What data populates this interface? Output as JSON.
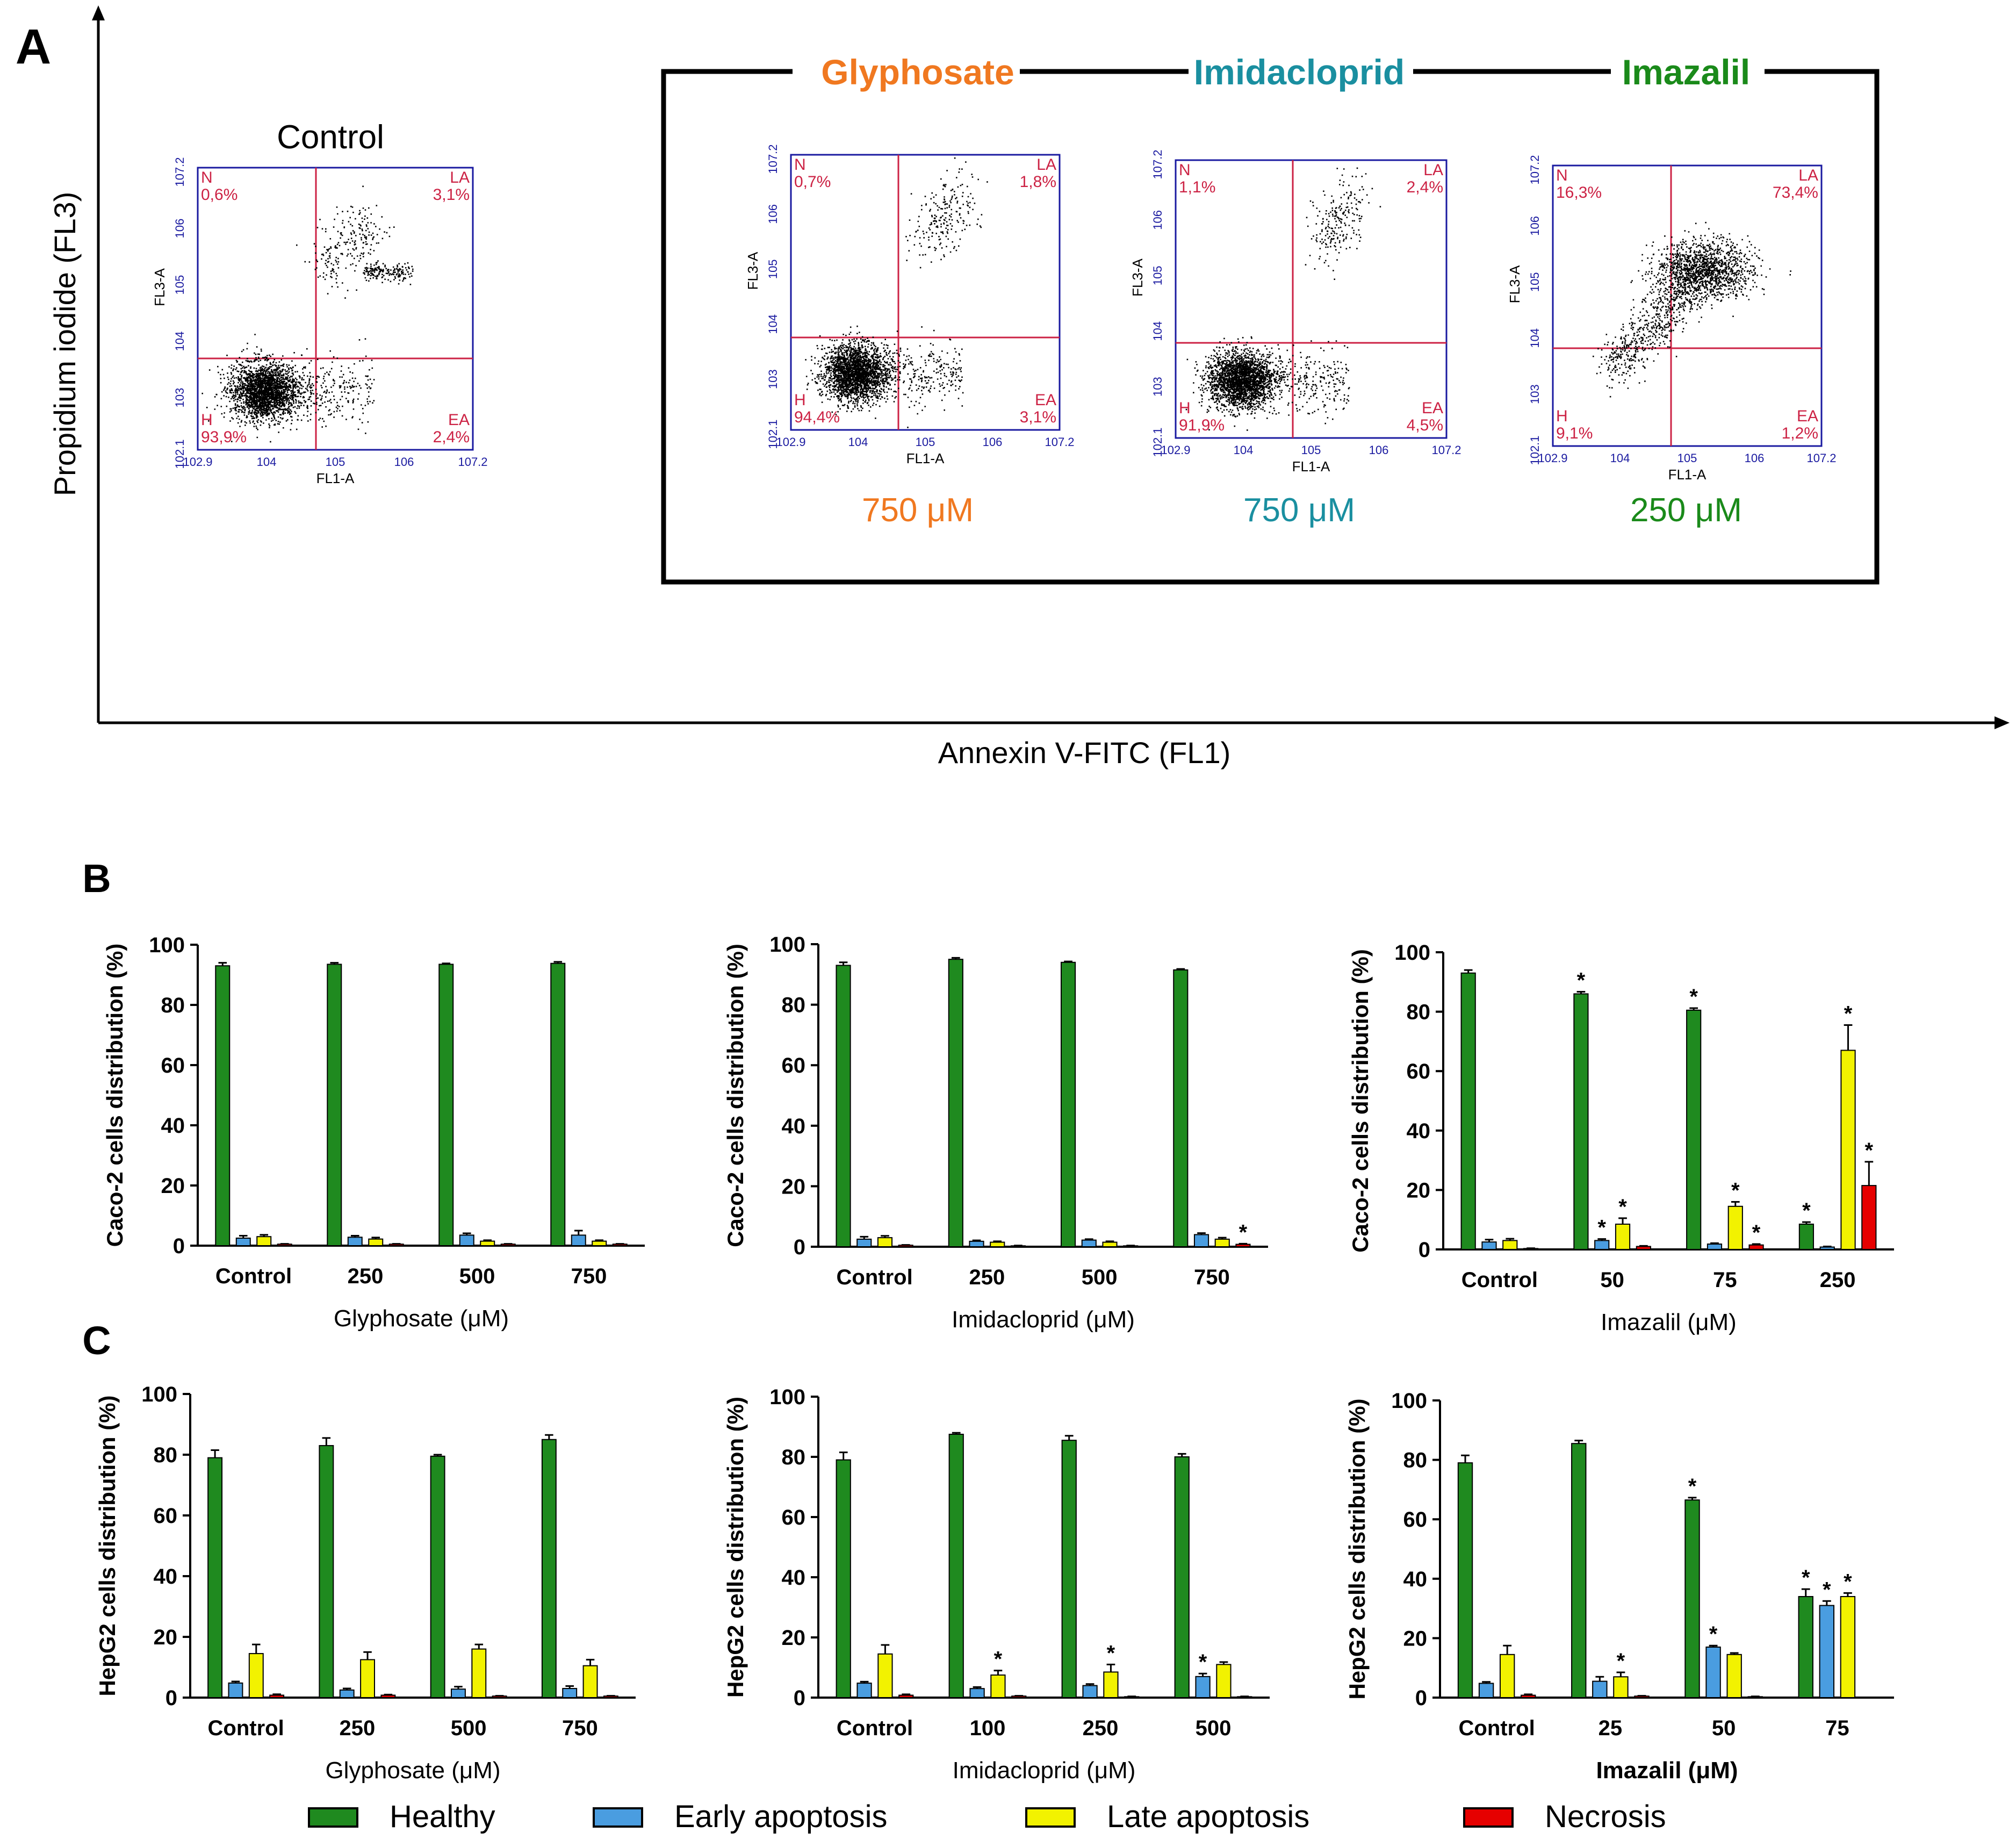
{
  "colors": {
    "healthy": "#1f8a1f",
    "early": "#4a9de0",
    "late": "#f2f200",
    "necrosis": "#e60000",
    "glyphosate": "#f07820",
    "imidacloprid": "#1a8fa0",
    "imazalil": "#1a8a1a",
    "quadrant": "#cc2244",
    "flowAxis": "#1a1aa0"
  },
  "panel_a": {
    "label": "A",
    "y_axis_label": "Propidium iodide (FL3)",
    "x_axis_label": "Annexin V-FITC (FL1)",
    "plots": [
      {
        "title": "Control",
        "conc": "",
        "key": "control",
        "quad": {
          "N": "0,6%",
          "LA": "3,1%",
          "H": "93,9%",
          "EA": "2,4%"
        }
      },
      {
        "title": "Glyphosate",
        "conc": "750 μM",
        "key": "glyphosate",
        "quad": {
          "N": "0,7%",
          "LA": "1,8%",
          "H": "94,4%",
          "EA": "3,1%"
        }
      },
      {
        "title": "Imidacloprid",
        "conc": "750 μM",
        "key": "imidacloprid",
        "quad": {
          "N": "1,1%",
          "LA": "2,4%",
          "H": "91,9%",
          "EA": "4,5%"
        }
      },
      {
        "title": "Imazalil",
        "conc": "250 μM",
        "key": "imazalil",
        "quad": {
          "N": "16,3%",
          "LA": "73,4%",
          "H": "9,1%",
          "EA": "1,2%"
        }
      }
    ],
    "quadrant_names": {
      "N": "N",
      "LA": "LA",
      "H": "H",
      "EA": "EA"
    },
    "flow_axis": {
      "x_label": "FL1-A",
      "y_label": "FL3-A",
      "x_ticks": [
        "10^2.9",
        "10^4",
        "10^5",
        "10^6",
        "10^7.2"
      ],
      "y_ticks": [
        "10^2.1",
        "10^3",
        "10^4",
        "10^5",
        "10^6",
        "10^7.2"
      ]
    }
  },
  "panel_labels": {
    "b": "B",
    "c": "C"
  },
  "legend": [
    "Healthy",
    "Early apoptosis",
    "Late apoptosis",
    "Necrosis"
  ],
  "chart_data": [
    {
      "type": "bar",
      "panel": "B",
      "xlabel": "Glyphosate (μM)",
      "ylabel": "Caco-2 cells distribution (%)",
      "ylim": [
        0,
        100
      ],
      "yticks": [
        0,
        20,
        40,
        60,
        80,
        100
      ],
      "categories": [
        "Control",
        "250",
        "500",
        "750"
      ],
      "series": [
        {
          "name": "Healthy",
          "values": [
            93,
            93.5,
            93.5,
            93.8
          ],
          "err": [
            1,
            0.5,
            0.3,
            0.5
          ]
        },
        {
          "name": "Early apoptosis",
          "values": [
            2.5,
            2.8,
            3.5,
            3.5
          ],
          "err": [
            0.8,
            0.5,
            0.6,
            1.5
          ]
        },
        {
          "name": "Late apoptosis",
          "values": [
            3,
            2.2,
            1.5,
            1.5
          ],
          "err": [
            0.6,
            0.5,
            0.3,
            0.3
          ]
        },
        {
          "name": "Necrosis",
          "values": [
            0.5,
            0.5,
            0.5,
            0.5
          ],
          "err": [
            0.1,
            0.1,
            0.1,
            0.1
          ]
        }
      ],
      "stars": []
    },
    {
      "type": "bar",
      "panel": "B",
      "xlabel": "Imidacloprid (μM)",
      "ylabel": "Caco-2 cells distribution (%)",
      "ylim": [
        0,
        100
      ],
      "yticks": [
        0,
        20,
        40,
        60,
        80,
        100
      ],
      "categories": [
        "Control",
        "250",
        "500",
        "750"
      ],
      "series": [
        {
          "name": "Healthy",
          "values": [
            93,
            95,
            94,
            91.5
          ],
          "err": [
            1,
            0.5,
            0.3,
            0.3
          ]
        },
        {
          "name": "Early apoptosis",
          "values": [
            2.5,
            1.8,
            2.2,
            4
          ],
          "err": [
            0.8,
            0.3,
            0.3,
            0.5
          ]
        },
        {
          "name": "Late apoptosis",
          "values": [
            3,
            1.5,
            1.5,
            2.5
          ],
          "err": [
            0.6,
            0.3,
            0.3,
            0.5
          ]
        },
        {
          "name": "Necrosis",
          "values": [
            0.5,
            0.3,
            0.3,
            0.8
          ],
          "err": [
            0.1,
            0.1,
            0.1,
            0.2
          ]
        }
      ],
      "stars": [
        [
          3,
          3
        ]
      ]
    },
    {
      "type": "bar",
      "panel": "B",
      "xlabel": "Imazalil (μM)",
      "ylabel": "Caco-2 cells distribution (%)",
      "ylim": [
        0,
        100
      ],
      "yticks": [
        0,
        20,
        40,
        60,
        80,
        100
      ],
      "categories": [
        "Control",
        "50",
        "75",
        "250"
      ],
      "series": [
        {
          "name": "Healthy",
          "values": [
            93,
            86,
            80.5,
            8.5
          ],
          "err": [
            1,
            0.7,
            0.7,
            0.7
          ]
        },
        {
          "name": "Early apoptosis",
          "values": [
            2.5,
            3,
            1.8,
            0.8
          ],
          "err": [
            0.8,
            0.5,
            0.3,
            0.2
          ]
        },
        {
          "name": "Late apoptosis",
          "values": [
            3,
            8.5,
            14.5,
            67
          ],
          "err": [
            0.6,
            2,
            1.5,
            8.5
          ]
        },
        {
          "name": "Necrosis",
          "values": [
            0.3,
            1,
            1.5,
            21.5
          ],
          "err": [
            0.1,
            0.2,
            0.3,
            8
          ]
        }
      ],
      "stars": [
        [
          1,
          0
        ],
        [
          1,
          1
        ],
        [
          1,
          2
        ],
        [
          2,
          0
        ],
        [
          2,
          2
        ],
        [
          2,
          3
        ],
        [
          3,
          0
        ],
        [
          3,
          2
        ],
        [
          3,
          3
        ]
      ]
    },
    {
      "type": "bar",
      "panel": "C",
      "xlabel": "Glyphosate (μM)",
      "ylabel": "HepG2 cells distribution (%)",
      "ylim": [
        0,
        100
      ],
      "yticks": [
        0,
        20,
        40,
        60,
        80,
        100
      ],
      "categories": [
        "Control",
        "250",
        "500",
        "750"
      ],
      "series": [
        {
          "name": "Healthy",
          "values": [
            79,
            83,
            79.5,
            85
          ],
          "err": [
            2.5,
            2.5,
            0.5,
            1.5
          ]
        },
        {
          "name": "Early apoptosis",
          "values": [
            4.8,
            2.5,
            2.8,
            3
          ],
          "err": [
            0.5,
            0.5,
            0.8,
            0.8
          ]
        },
        {
          "name": "Late apoptosis",
          "values": [
            14.5,
            12.5,
            16,
            10.5
          ],
          "err": [
            3,
            2.5,
            1.5,
            2
          ]
        },
        {
          "name": "Necrosis",
          "values": [
            0.8,
            0.8,
            0.5,
            0.5
          ],
          "err": [
            0.3,
            0.2,
            0.1,
            0.1
          ]
        }
      ],
      "stars": []
    },
    {
      "type": "bar",
      "panel": "C",
      "xlabel": "Imidacloprid (μM)",
      "ylabel": "HepG2 cells distribution (%)",
      "ylim": [
        0,
        100
      ],
      "yticks": [
        0,
        20,
        40,
        60,
        80,
        100
      ],
      "categories": [
        "Control",
        "100",
        "250",
        "500"
      ],
      "series": [
        {
          "name": "Healthy",
          "values": [
            79,
            87.5,
            85.5,
            80
          ],
          "err": [
            2.5,
            0.5,
            1.5,
            1
          ]
        },
        {
          "name": "Early apoptosis",
          "values": [
            4.8,
            3,
            4,
            7
          ],
          "err": [
            0.5,
            0.5,
            0.5,
            1
          ]
        },
        {
          "name": "Late apoptosis",
          "values": [
            14.5,
            7.5,
            8.5,
            11
          ],
          "err": [
            3,
            1.5,
            2.5,
            0.8
          ]
        },
        {
          "name": "Necrosis",
          "values": [
            0.8,
            0.5,
            0.3,
            0.3
          ],
          "err": [
            0.3,
            0.1,
            0.1,
            0.1
          ]
        }
      ],
      "stars": [
        [
          1,
          2
        ],
        [
          2,
          2
        ],
        [
          3,
          1
        ]
      ]
    },
    {
      "type": "bar",
      "panel": "C",
      "xlabel": "Imazalil (μM)",
      "ylabel": "HepG2 cells distribution (%)",
      "ylim": [
        0,
        100
      ],
      "yticks": [
        0,
        20,
        40,
        60,
        80,
        100
      ],
      "categories": [
        "Control",
        "25",
        "50",
        "75"
      ],
      "series": [
        {
          "name": "Healthy",
          "values": [
            79,
            85.5,
            66.5,
            34
          ],
          "err": [
            2.5,
            1,
            0.8,
            2.5
          ]
        },
        {
          "name": "Early apoptosis",
          "values": [
            4.8,
            5.5,
            17,
            31
          ],
          "err": [
            0.5,
            1.5,
            0.5,
            1.5
          ]
        },
        {
          "name": "Late apoptosis",
          "values": [
            14.5,
            7,
            14.5,
            34
          ],
          "err": [
            3,
            1.5,
            0.5,
            1.2
          ]
        },
        {
          "name": "Necrosis",
          "values": [
            0.8,
            0.5,
            0.3,
            null
          ],
          "err": [
            0.3,
            0.1,
            0.1,
            null
          ]
        }
      ],
      "stars": [
        [
          1,
          2
        ],
        [
          2,
          0
        ],
        [
          2,
          1
        ],
        [
          3,
          0
        ],
        [
          3,
          1
        ],
        [
          3,
          2
        ]
      ]
    }
  ]
}
